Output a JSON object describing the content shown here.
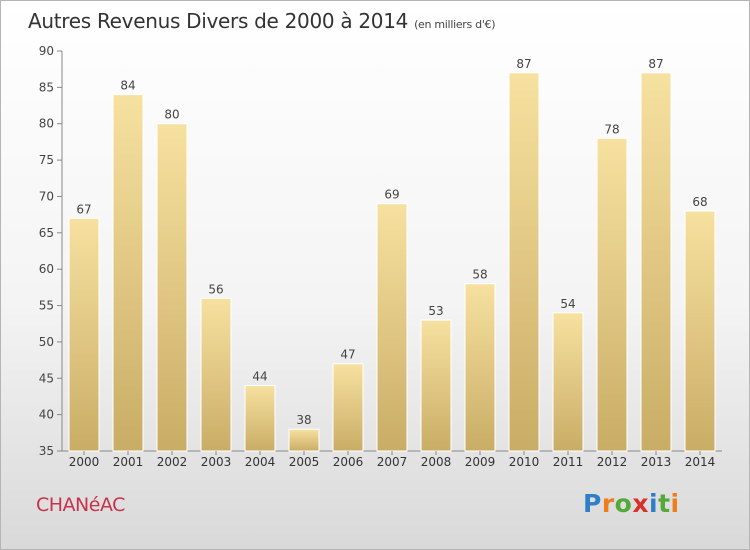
{
  "header": {
    "title": "Autres Revenus Divers de 2000 à 2014",
    "subtitle": "(en milliers d'€)"
  },
  "footer": {
    "town": "CHANéAC",
    "logo_text": "Proxiti"
  },
  "colors": {
    "bar_light": "#f7e1a0",
    "bar_dark": "#c9ad66",
    "town": "#c8324a"
  },
  "chart_data": {
    "type": "bar",
    "categories": [
      "2000",
      "2001",
      "2002",
      "2003",
      "2004",
      "2005",
      "2006",
      "2007",
      "2008",
      "2009",
      "2010",
      "2011",
      "2012",
      "2013",
      "2014"
    ],
    "values": [
      67,
      84,
      80,
      56,
      44,
      38,
      47,
      69,
      53,
      58,
      87,
      54,
      78,
      87,
      68
    ],
    "ylim": [
      35,
      90
    ],
    "yticks": [
      35,
      40,
      45,
      50,
      55,
      60,
      65,
      70,
      75,
      80,
      85,
      90
    ],
    "grid": false,
    "data_labels": true
  }
}
